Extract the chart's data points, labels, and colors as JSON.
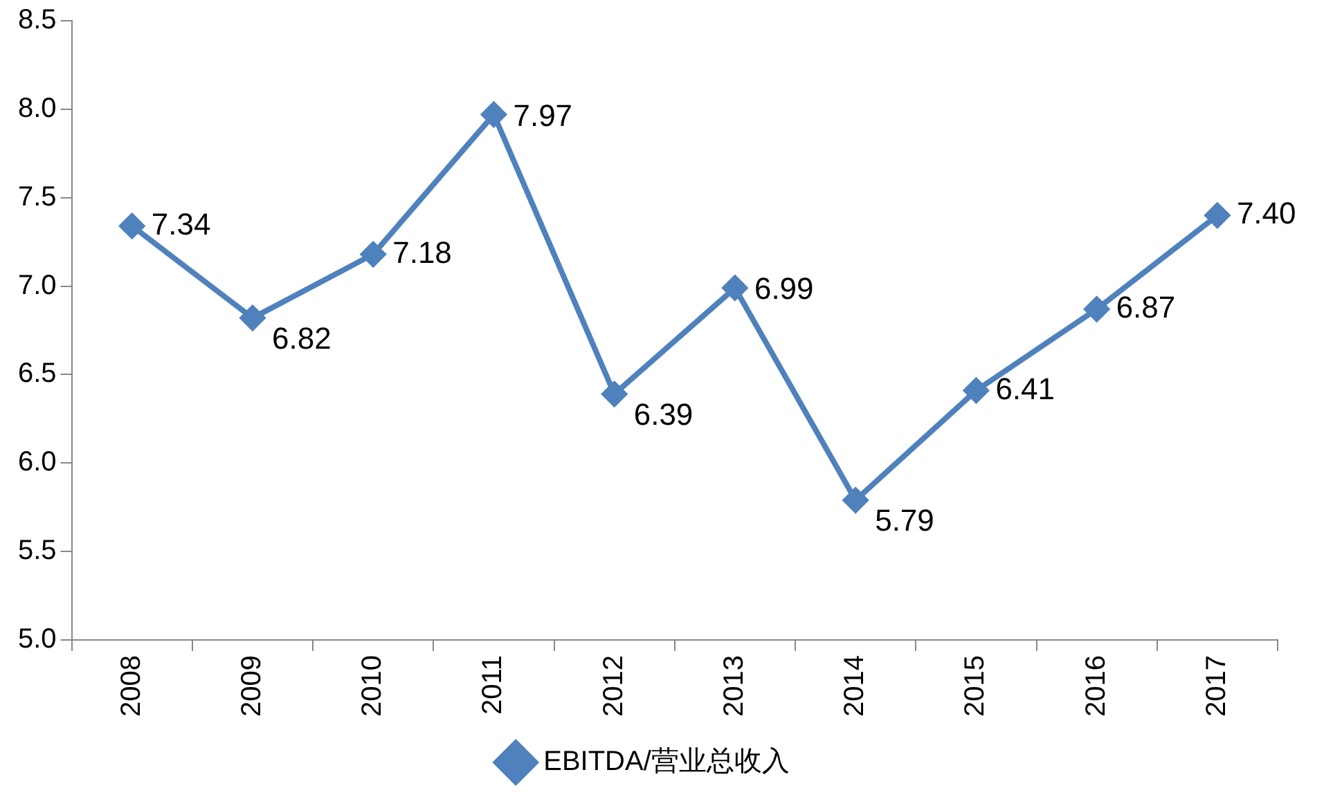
{
  "chart_data": {
    "type": "line",
    "categories": [
      "2008",
      "2009",
      "2010",
      "2011",
      "2012",
      "2013",
      "2014",
      "2015",
      "2016",
      "2017"
    ],
    "series": [
      {
        "name": "EBITDA/营业总收入",
        "color": "#4f81bd",
        "values": [
          7.34,
          6.82,
          7.18,
          7.97,
          6.39,
          6.99,
          5.79,
          6.41,
          6.87,
          7.4
        ],
        "value_labels": [
          "7.34",
          "6.82",
          "7.18",
          "7.97",
          "6.39",
          "6.99",
          "5.79",
          "6.41",
          "6.87",
          "7.40"
        ]
      }
    ],
    "ylim": [
      5.0,
      8.5
    ],
    "yticks": [
      {
        "value": 5.0,
        "label": "5.0"
      },
      {
        "value": 5.5,
        "label": "5.5"
      },
      {
        "value": 6.0,
        "label": "6.0"
      },
      {
        "value": 6.5,
        "label": "6.5"
      },
      {
        "value": 7.0,
        "label": "7.0"
      },
      {
        "value": 7.5,
        "label": "7.5"
      },
      {
        "value": 8.0,
        "label": "8.0"
      },
      {
        "value": 8.5,
        "label": "8.5"
      }
    ],
    "grid": false,
    "legend": "bottom",
    "marker": "diamond",
    "line_style": "solid"
  }
}
